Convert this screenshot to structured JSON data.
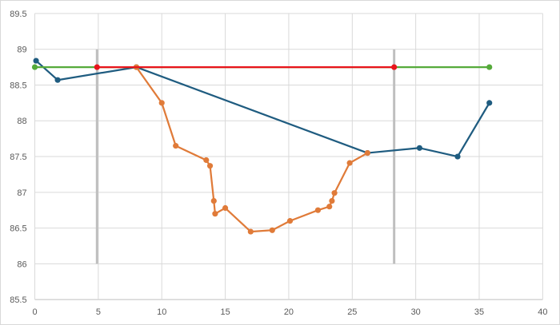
{
  "chart_data": {
    "type": "scatter",
    "title": "",
    "xlabel": "",
    "ylabel": "",
    "xlim": [
      0,
      40
    ],
    "ylim": [
      85.5,
      89.5
    ],
    "x_ticks": [
      0,
      5,
      10,
      15,
      20,
      25,
      30,
      35,
      40
    ],
    "y_ticks": [
      85.5,
      86,
      86.5,
      87,
      87.5,
      88,
      88.5,
      89,
      89.5
    ],
    "grid": true,
    "legend": "none",
    "series": [
      {
        "color": "#1f5c80",
        "style": "line-markers",
        "points": [
          [
            0.1,
            88.84
          ],
          [
            1.8,
            88.57
          ],
          [
            8.0,
            88.75
          ],
          [
            26.2,
            87.55
          ],
          [
            30.3,
            87.62
          ],
          [
            33.3,
            87.5
          ],
          [
            35.8,
            88.25
          ]
        ]
      },
      {
        "color": "#e07b39",
        "style": "line-markers",
        "points": [
          [
            8.0,
            88.75
          ],
          [
            10.0,
            88.25
          ],
          [
            11.1,
            87.65
          ],
          [
            13.5,
            87.45
          ],
          [
            13.8,
            87.37
          ],
          [
            14.1,
            86.88
          ],
          [
            14.2,
            86.7
          ],
          [
            15.0,
            86.78
          ],
          [
            17.0,
            86.45
          ],
          [
            18.7,
            86.47
          ],
          [
            20.1,
            86.6
          ],
          [
            22.3,
            86.75
          ],
          [
            23.2,
            86.8
          ],
          [
            23.4,
            86.88
          ],
          [
            23.6,
            86.99
          ],
          [
            24.8,
            87.41
          ],
          [
            26.2,
            87.55
          ]
        ]
      },
      {
        "color": "#55aa3a",
        "style": "line-markers",
        "points": [
          [
            0.0,
            88.75
          ],
          [
            35.8,
            88.75
          ]
        ]
      },
      {
        "color": "#e8141b",
        "style": "line-markers",
        "points": [
          [
            4.9,
            88.75
          ],
          [
            28.3,
            88.75
          ]
        ]
      },
      {
        "color": "#bfbfbf",
        "style": "vertical-line",
        "points": [
          [
            4.9,
            86.0
          ],
          [
            4.9,
            89.0
          ]
        ]
      },
      {
        "color": "#bfbfbf",
        "style": "vertical-line",
        "points": [
          [
            28.3,
            86.0
          ],
          [
            28.3,
            89.0
          ]
        ]
      }
    ]
  }
}
